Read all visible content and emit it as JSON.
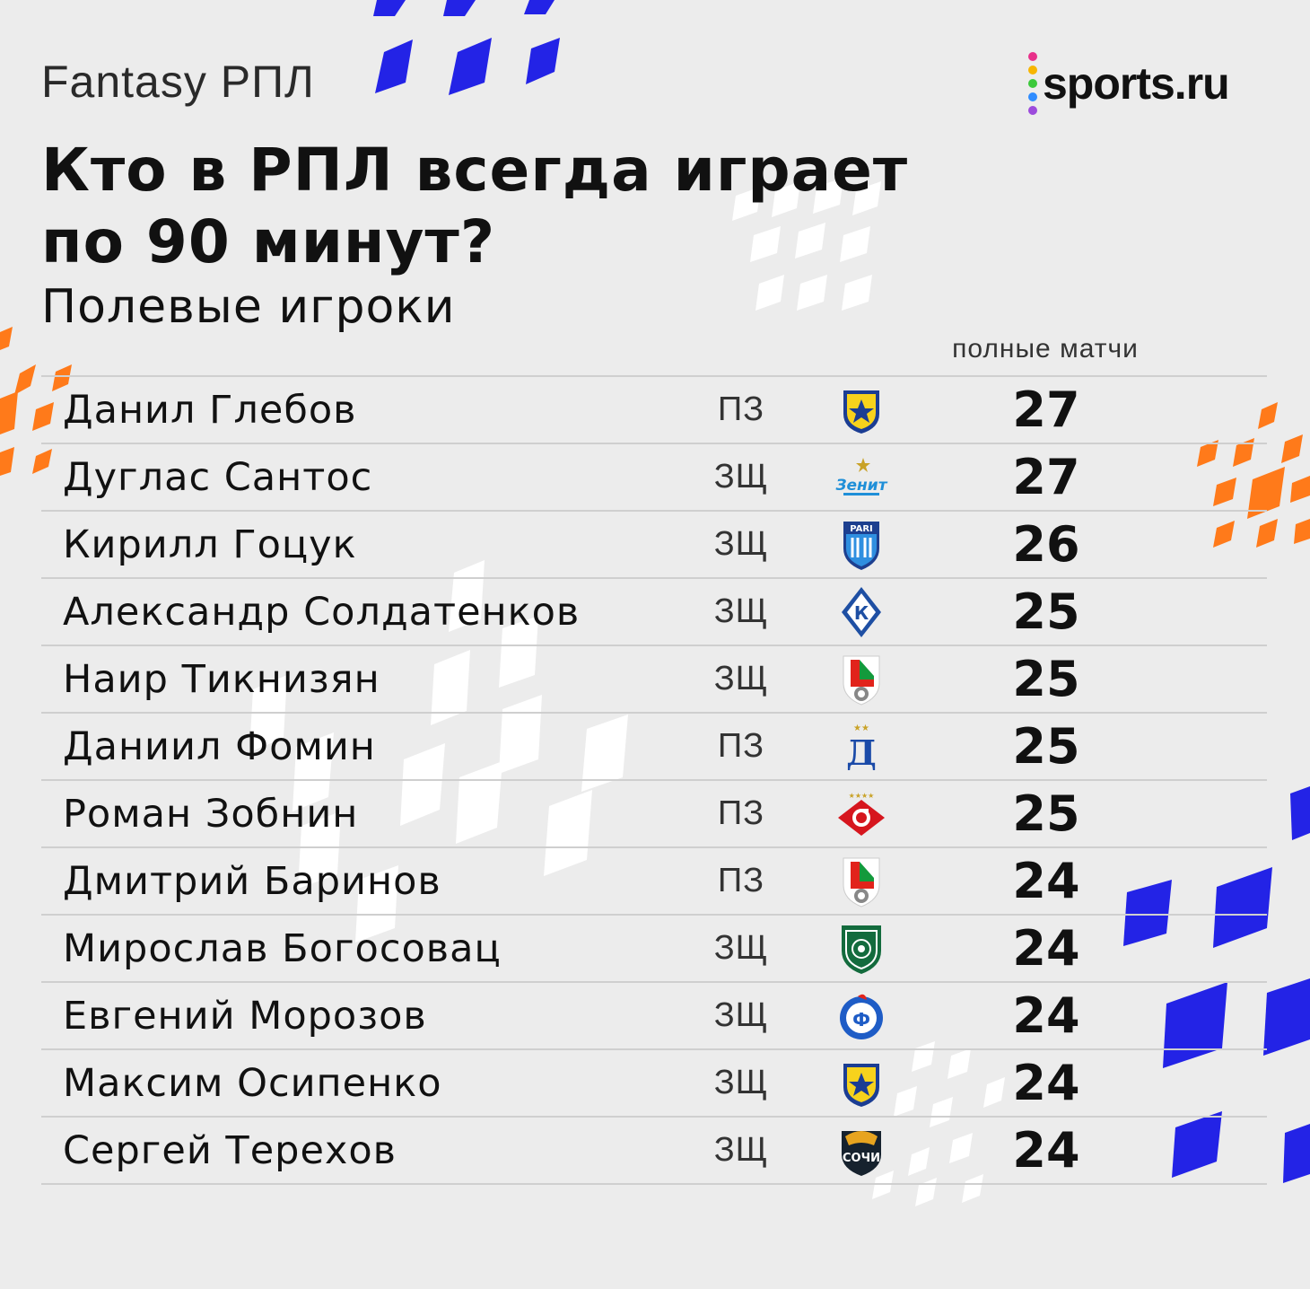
{
  "brand": "Fantasy РПЛ",
  "logo": {
    "text": "sports.ru",
    "dot_colors": [
      "#e8308a",
      "#f7b500",
      "#3cc93b",
      "#2f8cff",
      "#9c4bdc"
    ]
  },
  "title": {
    "line1": "Кто в РПЛ всегда играет",
    "line2": "по 90 минут?"
  },
  "subtitle": "Полевые игроки",
  "column_header": "полные матчи",
  "decor_colors": {
    "blue": "#2323e6",
    "orange": "#ff7a1a",
    "white": "#ffffff"
  },
  "players": [
    {
      "name": "Данил Глебов",
      "position": "ПЗ",
      "club_crest": "rostov-crest",
      "full_matches": "27"
    },
    {
      "name": "Дуглас Сантос",
      "position": "ЗЩ",
      "club_crest": "zenit-crest",
      "full_matches": "27"
    },
    {
      "name": "Кирилл Гоцук",
      "position": "ЗЩ",
      "club_crest": "pari-nn-crest",
      "full_matches": "26"
    },
    {
      "name": "Александр Солдатенков",
      "position": "ЗЩ",
      "club_crest": "krylia-sovetov-crest",
      "full_matches": "25"
    },
    {
      "name": "Наир Тикнизян",
      "position": "ЗЩ",
      "club_crest": "lokomotiv-crest",
      "full_matches": "25"
    },
    {
      "name": "Даниил Фомин",
      "position": "ПЗ",
      "club_crest": "dynamo-crest",
      "full_matches": "25"
    },
    {
      "name": "Роман Зобнин",
      "position": "ПЗ",
      "club_crest": "spartak-crest",
      "full_matches": "25"
    },
    {
      "name": "Дмитрий Баринов",
      "position": "ПЗ",
      "club_crest": "lokomotiv-crest",
      "full_matches": "24"
    },
    {
      "name": "Мирослав Богосовац",
      "position": "ЗЩ",
      "club_crest": "akhmat-crest",
      "full_matches": "24"
    },
    {
      "name": "Евгений Морозов",
      "position": "ЗЩ",
      "club_crest": "fakel-crest",
      "full_matches": "24"
    },
    {
      "name": "Максим Осипенко",
      "position": "ЗЩ",
      "club_crest": "rostov-crest",
      "full_matches": "24"
    },
    {
      "name": "Сергей Терехов",
      "position": "ЗЩ",
      "club_crest": "sochi-crest",
      "full_matches": "24"
    }
  ]
}
